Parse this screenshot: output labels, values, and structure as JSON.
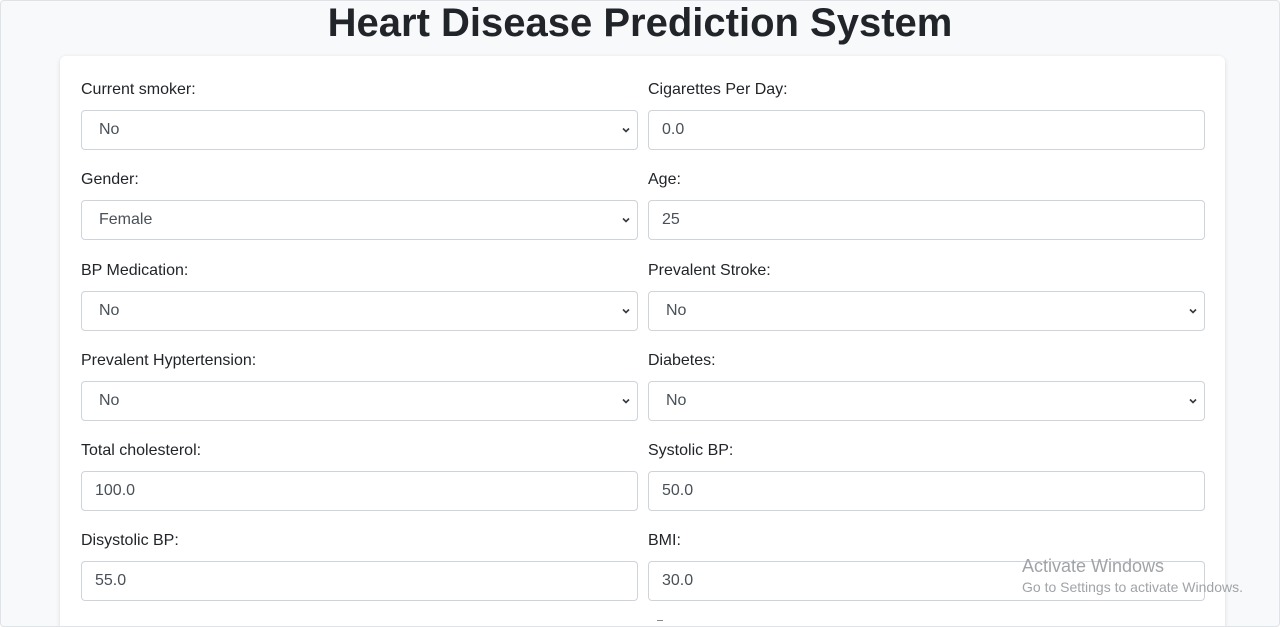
{
  "page_title": "Heart Disease Prediction System",
  "form": {
    "current_smoker": {
      "label": "Current smoker:",
      "value": "No"
    },
    "cigs_per_day": {
      "label": "Cigarettes Per Day:",
      "value": "0.0"
    },
    "gender": {
      "label": "Gender:",
      "value": "Female"
    },
    "age": {
      "label": "Age:",
      "value": "25"
    },
    "bp_meds": {
      "label": "BP Medication:",
      "value": "No"
    },
    "prevalent_stroke": {
      "label": "Prevalent Stroke:",
      "value": "No"
    },
    "prevalent_hyp": {
      "label": "Prevalent Hyptertension:",
      "value": "No"
    },
    "diabetes": {
      "label": "Diabetes:",
      "value": "No"
    },
    "total_chol": {
      "label": "Total cholesterol:",
      "value": "100.0"
    },
    "sys_bp": {
      "label": "Systolic BP:",
      "value": "50.0"
    },
    "dia_bp": {
      "label": "Disystolic BP:",
      "value": "55.0"
    },
    "bmi": {
      "label": "BMI:",
      "value": "30.0"
    }
  },
  "watermark": {
    "line1": "Activate Windows",
    "line2": "Go to Settings to activate Windows."
  },
  "icons": {
    "dropdown": "chevron-down-icon"
  }
}
